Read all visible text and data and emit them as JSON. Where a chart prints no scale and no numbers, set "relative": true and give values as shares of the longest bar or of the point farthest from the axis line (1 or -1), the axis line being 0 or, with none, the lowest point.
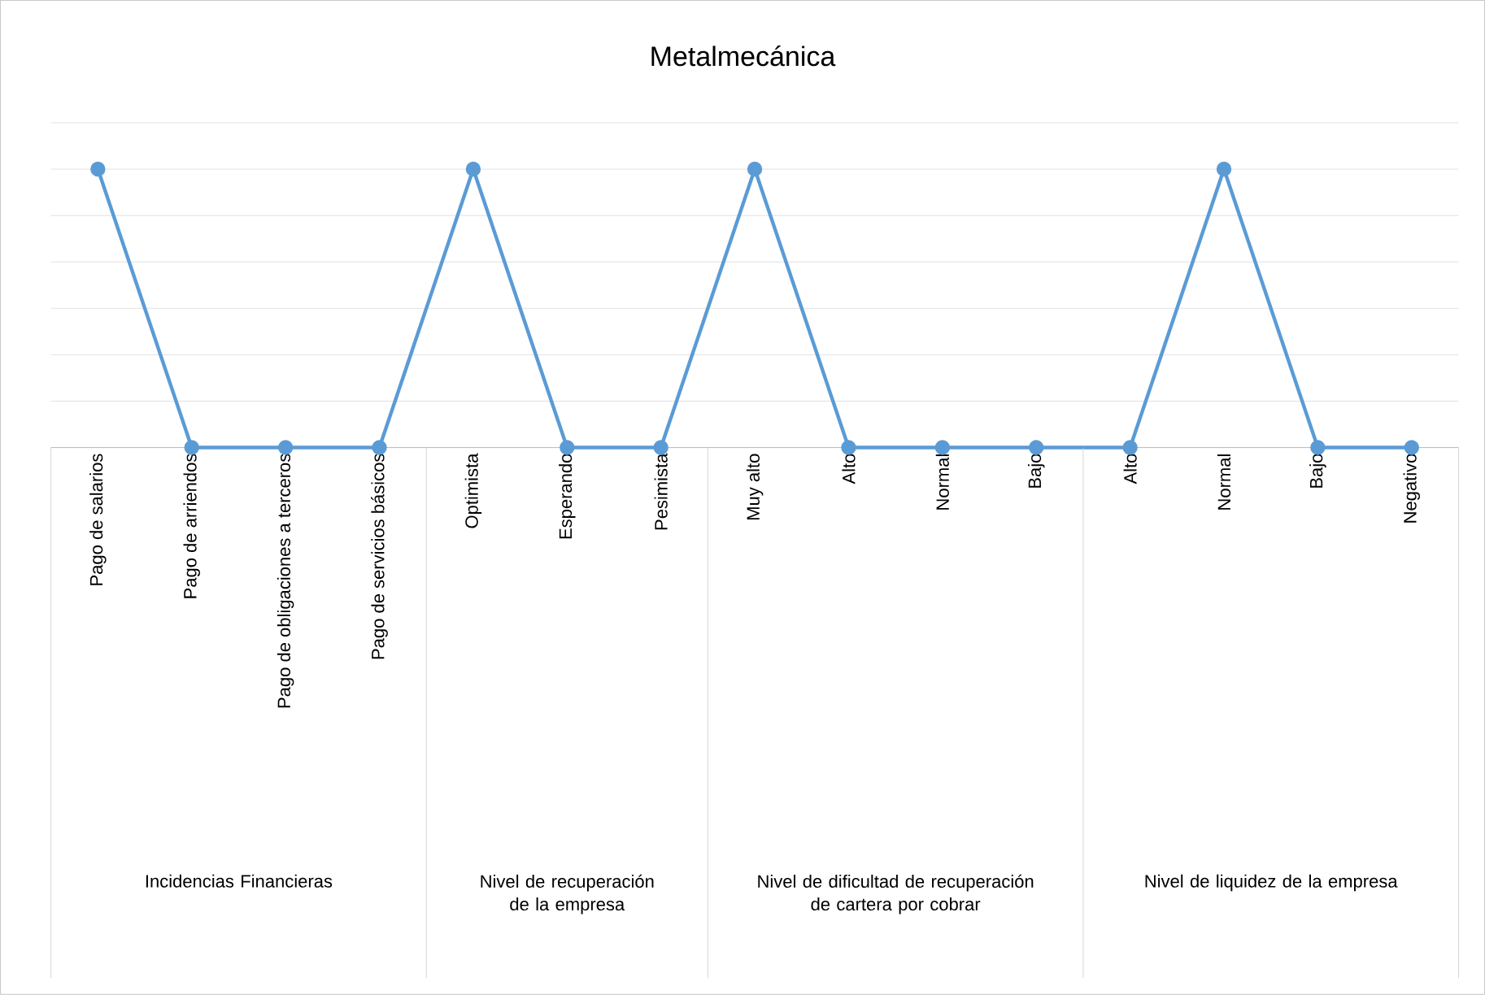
{
  "chart_data": {
    "type": "line",
    "title": "Metalmecánica",
    "relative": true,
    "grid": "y",
    "marker": "circle",
    "color": "#5b9bd5",
    "categories": [
      "Pago de salarios",
      "Pago de arriendos",
      "Pago de obligaciones a terceros",
      "Pago de servicios básicos",
      "Optimista",
      "Esperando",
      "Pesimista",
      "Muy alto",
      "Alto",
      "Normal",
      "Bajo",
      "Alto",
      "Normal",
      "Bajo",
      "Negativo"
    ],
    "values": [
      1,
      0,
      0,
      0,
      1,
      0,
      0,
      1,
      0,
      0,
      0,
      0,
      1,
      0,
      0
    ],
    "annotations": [
      "Incidencias Financieras",
      "Nivel de recuperación de la empresa",
      "Nivel de dificultad de recuperación de cartera por cobrar",
      "Nivel de liquidez de la empresa"
    ]
  }
}
